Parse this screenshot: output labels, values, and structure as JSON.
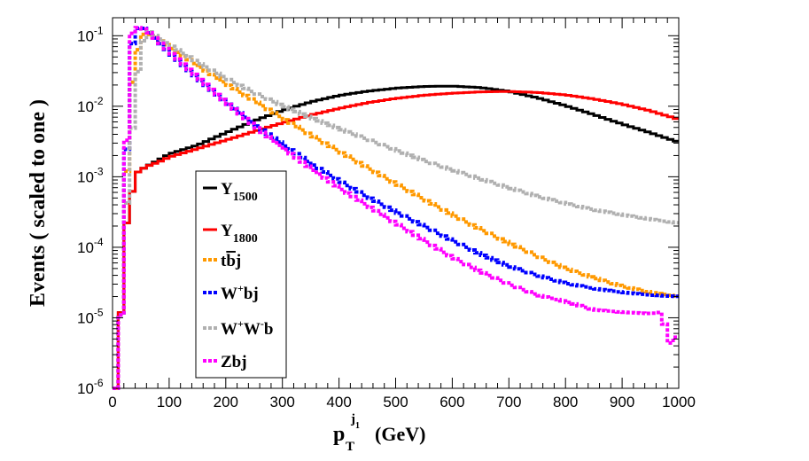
{
  "chart_data": {
    "type": "line",
    "step": true,
    "title": "",
    "xlabel": "(GeV)",
    "xlabel_symbol": {
      "base": "p",
      "sub": "T",
      "sup": "j",
      "sup_sub": "1"
    },
    "ylabel": "Events ( scaled to one )",
    "xlim": [
      0,
      1000
    ],
    "ylim": [
      1e-06,
      0.18
    ],
    "y_scale": "log",
    "bin_width": 10,
    "x_ticks": [
      0,
      100,
      200,
      300,
      400,
      500,
      600,
      700,
      800,
      900,
      1000
    ],
    "x_tick_labels": [
      "0",
      "100",
      "200",
      "300",
      "400",
      "500",
      "600",
      "700",
      "800",
      "900",
      "1000"
    ],
    "y_ticks": [
      {
        "value": 1e-06,
        "base": "10",
        "exp": "-6"
      },
      {
        "value": 1e-05,
        "base": "10",
        "exp": "-5"
      },
      {
        "value": 0.0001,
        "base": "10",
        "exp": "-4"
      },
      {
        "value": 0.001,
        "base": "10",
        "exp": "-3"
      },
      {
        "value": 0.01,
        "base": "10",
        "exp": "-2"
      },
      {
        "value": 0.1,
        "base": "10",
        "exp": "-1"
      }
    ],
    "legend_position": "center-left",
    "series": [
      {
        "name": "Y",
        "name_sub": "1500",
        "color": "#000000",
        "style": "solid",
        "points": [
          [
            10,
            1e-06
          ],
          [
            20,
            0.00014
          ],
          [
            30,
            0.00035
          ],
          [
            40,
            0.0011
          ],
          [
            60,
            0.0014
          ],
          [
            80,
            0.0017
          ],
          [
            100,
            0.0021
          ],
          [
            150,
            0.0028
          ],
          [
            200,
            0.0042
          ],
          [
            250,
            0.0062
          ],
          [
            300,
            0.0087
          ],
          [
            350,
            0.0115
          ],
          [
            400,
            0.0142
          ],
          [
            450,
            0.0163
          ],
          [
            500,
            0.018
          ],
          [
            550,
            0.0191
          ],
          [
            600,
            0.0193
          ],
          [
            650,
            0.0184
          ],
          [
            700,
            0.0163
          ],
          [
            750,
            0.0132
          ],
          [
            800,
            0.0102
          ],
          [
            850,
            0.0076
          ],
          [
            900,
            0.0056
          ],
          [
            950,
            0.0042
          ],
          [
            1000,
            0.0031
          ]
        ]
      },
      {
        "name": "Y",
        "name_sub": "1800",
        "color": "#ff0000",
        "style": "solid",
        "points": [
          [
            10,
            1e-06
          ],
          [
            20,
            0.00014
          ],
          [
            30,
            0.00035
          ],
          [
            40,
            0.0011
          ],
          [
            60,
            0.0014
          ],
          [
            80,
            0.0016
          ],
          [
            100,
            0.0019
          ],
          [
            150,
            0.0025
          ],
          [
            200,
            0.0033
          ],
          [
            250,
            0.0044
          ],
          [
            300,
            0.0058
          ],
          [
            350,
            0.0075
          ],
          [
            400,
            0.0093
          ],
          [
            450,
            0.0112
          ],
          [
            500,
            0.0129
          ],
          [
            550,
            0.0143
          ],
          [
            600,
            0.0153
          ],
          [
            650,
            0.016
          ],
          [
            700,
            0.0162
          ],
          [
            750,
            0.0157
          ],
          [
            800,
            0.0145
          ],
          [
            850,
            0.0127
          ],
          [
            900,
            0.0107
          ],
          [
            950,
            0.0086
          ],
          [
            1000,
            0.0065
          ]
        ]
      },
      {
        "name": "t",
        "name_bar": "b",
        "name_tail": "j",
        "color": "#ff9900",
        "style": "dashed",
        "points": [
          [
            10,
            1e-06
          ],
          [
            20,
            0.00012
          ],
          [
            30,
            0.012
          ],
          [
            40,
            0.04
          ],
          [
            50,
            0.1
          ],
          [
            60,
            0.11
          ],
          [
            80,
            0.09
          ],
          [
            100,
            0.07
          ],
          [
            150,
            0.038
          ],
          [
            200,
            0.021
          ],
          [
            250,
            0.012
          ],
          [
            300,
            0.0068
          ],
          [
            350,
            0.0039
          ],
          [
            400,
            0.0023
          ],
          [
            450,
            0.00135
          ],
          [
            500,
            0.0008
          ],
          [
            550,
            0.00048
          ],
          [
            600,
            0.00029
          ],
          [
            650,
            0.00018
          ],
          [
            700,
            0.000115
          ],
          [
            750,
            7.5e-05
          ],
          [
            800,
            5e-05
          ],
          [
            850,
            3.7e-05
          ],
          [
            900,
            2.8e-05
          ],
          [
            950,
            2.3e-05
          ],
          [
            1000,
            2e-05
          ]
        ]
      },
      {
        "name": "W",
        "name_sup": "+",
        "name_tail": "bj",
        "color": "#0000ff",
        "style": "dashed",
        "points": [
          [
            10,
            1e-06
          ],
          [
            20,
            0.00012
          ],
          [
            30,
            0.05
          ],
          [
            40,
            0.12
          ],
          [
            50,
            0.135
          ],
          [
            60,
            0.12
          ],
          [
            80,
            0.085
          ],
          [
            100,
            0.058
          ],
          [
            150,
            0.025
          ],
          [
            200,
            0.0115
          ],
          [
            250,
            0.0056
          ],
          [
            300,
            0.0029
          ],
          [
            350,
            0.00155
          ],
          [
            400,
            0.00088
          ],
          [
            450,
            0.00052
          ],
          [
            500,
            0.00032
          ],
          [
            550,
            0.0002
          ],
          [
            600,
            0.000125
          ],
          [
            650,
            8e-05
          ],
          [
            700,
            5.4e-05
          ],
          [
            750,
            4e-05
          ],
          [
            800,
            3.1e-05
          ],
          [
            850,
            2.6e-05
          ],
          [
            900,
            2.3e-05
          ],
          [
            950,
            2.1e-05
          ],
          [
            1000,
            2e-05
          ]
        ]
      },
      {
        "name": "W",
        "name_sup": "+",
        "name_mid": "W",
        "name_sup2": "-",
        "name_tail": "b",
        "color": "#b0b0b0",
        "style": "dashed",
        "points": [
          [
            10,
            1e-06
          ],
          [
            20,
            0.00012
          ],
          [
            30,
            0.0015
          ],
          [
            40,
            0.016
          ],
          [
            50,
            0.06
          ],
          [
            60,
            0.12
          ],
          [
            80,
            0.095
          ],
          [
            100,
            0.075
          ],
          [
            150,
            0.042
          ],
          [
            200,
            0.025
          ],
          [
            250,
            0.0155
          ],
          [
            300,
            0.0102
          ],
          [
            350,
            0.0069
          ],
          [
            400,
            0.0048
          ],
          [
            450,
            0.0034
          ],
          [
            500,
            0.0024
          ],
          [
            550,
            0.0017
          ],
          [
            600,
            0.00125
          ],
          [
            650,
            0.00093
          ],
          [
            700,
            0.0007
          ],
          [
            750,
            0.00053
          ],
          [
            800,
            0.00042
          ],
          [
            850,
            0.00034
          ],
          [
            900,
            0.00029
          ],
          [
            950,
            0.00025
          ],
          [
            1000,
            0.00022
          ]
        ]
      },
      {
        "name": "Zbj",
        "color": "#ff00ff",
        "style": "dashed",
        "points": [
          [
            10,
            1e-06
          ],
          [
            20,
            0.00012
          ],
          [
            30,
            0.09
          ],
          [
            40,
            0.13
          ],
          [
            50,
            0.13
          ],
          [
            60,
            0.12
          ],
          [
            80,
            0.085
          ],
          [
            100,
            0.06
          ],
          [
            150,
            0.026
          ],
          [
            200,
            0.0115
          ],
          [
            250,
            0.0053
          ],
          [
            300,
            0.0026
          ],
          [
            350,
            0.00132
          ],
          [
            400,
            0.0007
          ],
          [
            450,
            0.00039
          ],
          [
            500,
            0.00022
          ],
          [
            550,
            0.000125
          ],
          [
            600,
            7.2e-05
          ],
          [
            650,
            4.5e-05
          ],
          [
            700,
            3e-05
          ],
          [
            750,
            2.1e-05
          ],
          [
            800,
            1.7e-05
          ],
          [
            850,
            1.3e-05
          ],
          [
            900,
            1.2e-05
          ],
          [
            950,
            1.15e-05
          ],
          [
            970,
            1.2e-05
          ],
          [
            980,
            5.5e-06
          ],
          [
            990,
            3.5e-06
          ],
          [
            1000,
            8e-06
          ]
        ]
      }
    ]
  }
}
